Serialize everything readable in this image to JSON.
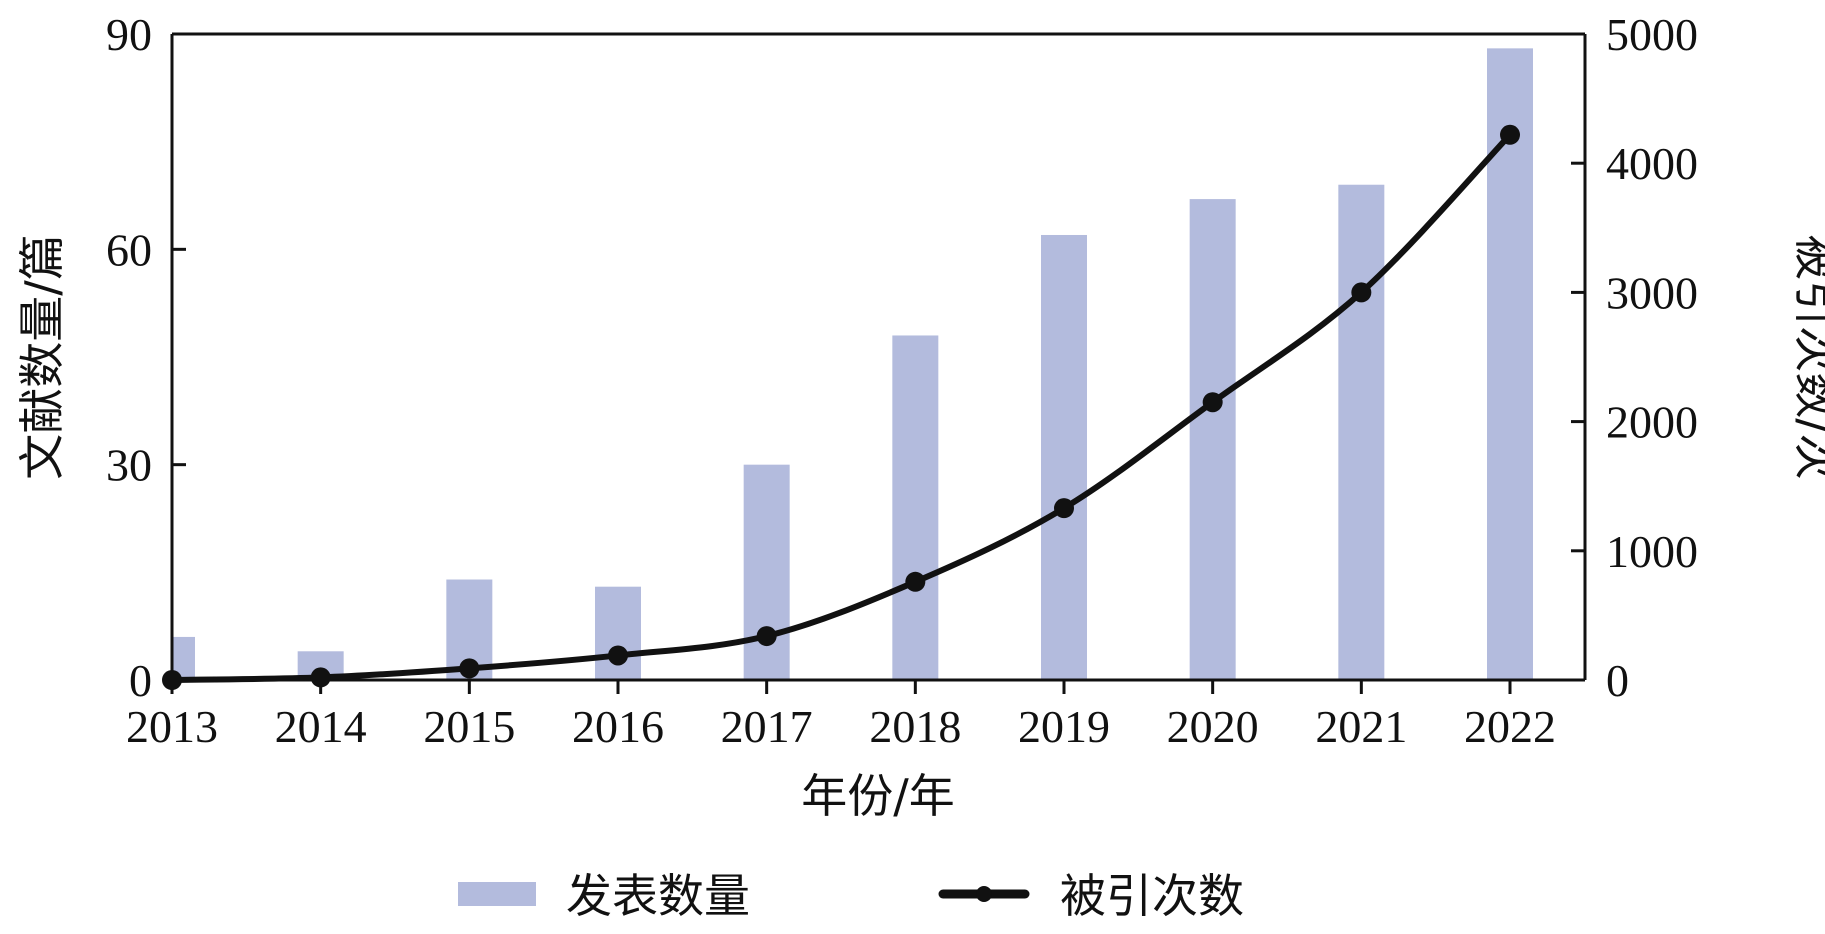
{
  "chart_data": {
    "type": "bar",
    "categories": [
      "2013",
      "2014",
      "2015",
      "2016",
      "2017",
      "2018",
      "2019",
      "2020",
      "2021",
      "2022"
    ],
    "series": [
      {
        "name": "发表数量",
        "type": "bar",
        "axis": "left",
        "color": "#b3bbdd",
        "values": [
          6,
          4,
          14,
          13,
          30,
          48,
          62,
          67,
          69,
          88
        ]
      },
      {
        "name": "被引次数",
        "type": "line",
        "axis": "right",
        "color": "#111111",
        "marker": "circle",
        "values": [
          0,
          20,
          90,
          190,
          340,
          760,
          1330,
          2150,
          3000,
          4220
        ]
      }
    ],
    "xlabel": "年份/年",
    "ylabel_left": "文献数量/篇",
    "ylabel_right": "被引次数/次",
    "ylim_left": [
      0,
      90
    ],
    "ylim_right": [
      0,
      5000
    ],
    "yticks_left": [
      "0",
      "30",
      "60",
      "90"
    ],
    "yticks_right": [
      "0",
      "1000",
      "2000",
      "3000",
      "4000",
      "5000"
    ],
    "grid": false,
    "legend_position": "bottom"
  }
}
